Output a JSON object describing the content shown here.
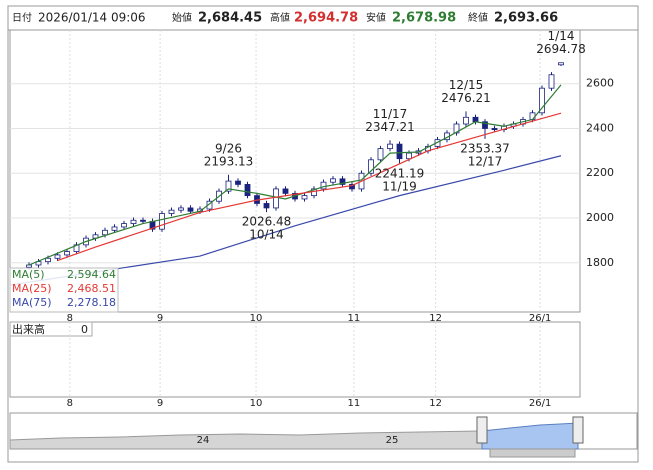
{
  "header": {
    "date_label": "日付",
    "datetime": "2026/01/14 09:06",
    "open_label": "始値",
    "open": "2,684.45",
    "high_label": "高値",
    "high": "2,694.78",
    "low_label": "安値",
    "low": "2,678.98",
    "close_label": "終値",
    "close": "2,693.66"
  },
  "chart_data": {
    "type": "candlestick",
    "x": [
      2,
      3,
      4,
      5,
      6,
      7,
      8,
      9,
      10,
      11,
      12,
      13,
      14,
      15,
      16,
      17,
      18,
      19,
      20,
      21,
      22,
      23,
      24,
      25,
      26,
      27,
      28,
      29,
      30,
      31,
      32,
      33,
      34,
      35,
      36,
      37,
      38,
      39,
      40,
      41,
      42,
      43,
      44,
      45,
      46,
      47,
      48,
      49,
      50,
      51,
      52,
      53,
      54,
      55,
      56,
      57,
      58
    ],
    "open": [
      1780,
      1790,
      1805,
      1820,
      1835,
      1850,
      1880,
      1910,
      1925,
      1945,
      1960,
      1975,
      1990,
      1985,
      1950,
      2020,
      2035,
      2045,
      2030,
      2040,
      2075,
      2120,
      2165,
      2150,
      2100,
      2065,
      2045,
      2130,
      2110,
      2085,
      2100,
      2130,
      2160,
      2175,
      2150,
      2130,
      2200,
      2260,
      2310,
      2330,
      2265,
      2290,
      2300,
      2320,
      2350,
      2380,
      2420,
      2450,
      2430,
      2400,
      2395,
      2410,
      2420,
      2440,
      2470,
      2580,
      2684.45
    ],
    "high": [
      1802,
      1817,
      1832,
      1847,
      1862,
      1892,
      1922,
      1937,
      1957,
      1972,
      1987,
      2002,
      2002,
      1997,
      2032,
      2047,
      2057,
      2057,
      2052,
      2087,
      2132,
      2193.13,
      2177,
      2162,
      2112,
      2077,
      2142,
      2142,
      2122,
      2112,
      2142,
      2172,
      2187,
      2187,
      2162,
      2212,
      2272,
      2322,
      2347.21,
      2342,
      2302,
      2312,
      2332,
      2362,
      2392,
      2432,
      2476.21,
      2462,
      2442,
      2412,
      2422,
      2432,
      2452,
      2482,
      2592,
      2652,
      2694.78
    ],
    "low": [
      1768,
      1778,
      1793,
      1808,
      1823,
      1838,
      1868,
      1898,
      1913,
      1933,
      1948,
      1963,
      1973,
      1938,
      1938,
      2008,
      2023,
      2018,
      2018,
      2028,
      2063,
      2108,
      2138,
      2088,
      2053,
      2026.48,
      2033,
      2098,
      2073,
      2073,
      2088,
      2118,
      2148,
      2138,
      2118,
      2118,
      2188,
      2248,
      2298,
      2241.19,
      2253,
      2278,
      2288,
      2308,
      2338,
      2368,
      2408,
      2418,
      2353.37,
      2383,
      2383,
      2398,
      2408,
      2428,
      2458,
      2568,
      2678.98
    ],
    "close": [
      1790,
      1805,
      1820,
      1835,
      1850,
      1880,
      1910,
      1925,
      1945,
      1960,
      1975,
      1990,
      1985,
      1950,
      2020,
      2035,
      2045,
      2030,
      2040,
      2075,
      2120,
      2165,
      2150,
      2100,
      2065,
      2045,
      2130,
      2110,
      2085,
      2100,
      2130,
      2160,
      2175,
      2150,
      2130,
      2200,
      2260,
      2310,
      2330,
      2265,
      2290,
      2300,
      2320,
      2350,
      2380,
      2420,
      2450,
      2430,
      2400,
      2395,
      2410,
      2420,
      2440,
      2470,
      2580,
      2640,
      2693.66
    ],
    "up_color": "#ffffff",
    "down_color": "#1a237e",
    "edge_color": "#1a237e",
    "series": [
      {
        "name": "MA(5)",
        "color": "#2e7d32",
        "label_value": "2,594.64",
        "x": [
          2,
          8,
          14,
          20,
          23,
          26,
          29,
          33,
          37,
          40,
          43,
          46,
          49,
          52,
          55,
          58
        ],
        "values": [
          1790,
          1895,
          1975,
          2030,
          2130,
          2110,
          2085,
          2140,
          2170,
          2290,
          2295,
          2360,
          2430,
          2410,
          2440,
          2594.64
        ]
      },
      {
        "name": "MA(25)",
        "color": "#e53935",
        "label_value": "2,468.51",
        "x": [
          5,
          9,
          20,
          26,
          36,
          44,
          56,
          58
        ],
        "values": [
          1810,
          1870,
          2025,
          2080,
          2145,
          2300,
          2445,
          2468.51
        ]
      },
      {
        "name": "MA(75)",
        "color": "#3949ab",
        "label_value": "2,278.18",
        "x": [
          0,
          20,
          30,
          41,
          52,
          58
        ],
        "values": [
          1700,
          1830,
          1965,
          2100,
          2213,
          2278.18
        ]
      }
    ],
    "annotations": [
      {
        "date": "1/14",
        "value": 2694.78,
        "x": 58,
        "pos": "above"
      },
      {
        "date": "12/15",
        "value": 2476.21,
        "x": 48,
        "pos": "above"
      },
      {
        "date": "11/17",
        "value": 2347.21,
        "x": 40,
        "pos": "above"
      },
      {
        "date": "9/26",
        "value": 2193.13,
        "x": 23,
        "pos": "above"
      },
      {
        "date": "10/14",
        "value": 2026.48,
        "x": 27,
        "pos": "below"
      },
      {
        "date": "11/19",
        "value": 2241.19,
        "x": 41,
        "pos": "below"
      },
      {
        "date": "12/17",
        "value": 2353.37,
        "x": 50,
        "pos": "below"
      }
    ],
    "xlim": [
      0,
      60
    ],
    "xticks": [
      {
        "value": 6.3,
        "label": "8"
      },
      {
        "value": 15.8,
        "label": "9"
      },
      {
        "value": 25.9,
        "label": "10"
      },
      {
        "value": 36.2,
        "label": "11"
      },
      {
        "value": 44.8,
        "label": "12"
      },
      {
        "value": 55.8,
        "label": "26/1"
      }
    ],
    "ylim": [
      1580,
      2840
    ],
    "yticks": [
      1800,
      2000,
      2200,
      2400,
      2600
    ],
    "grid": true,
    "volume_label": "出来高",
    "volume_value": "0",
    "navigator_labels": [
      {
        "value": 203,
        "label": "24"
      },
      {
        "value": 392,
        "label": "25"
      }
    ]
  }
}
